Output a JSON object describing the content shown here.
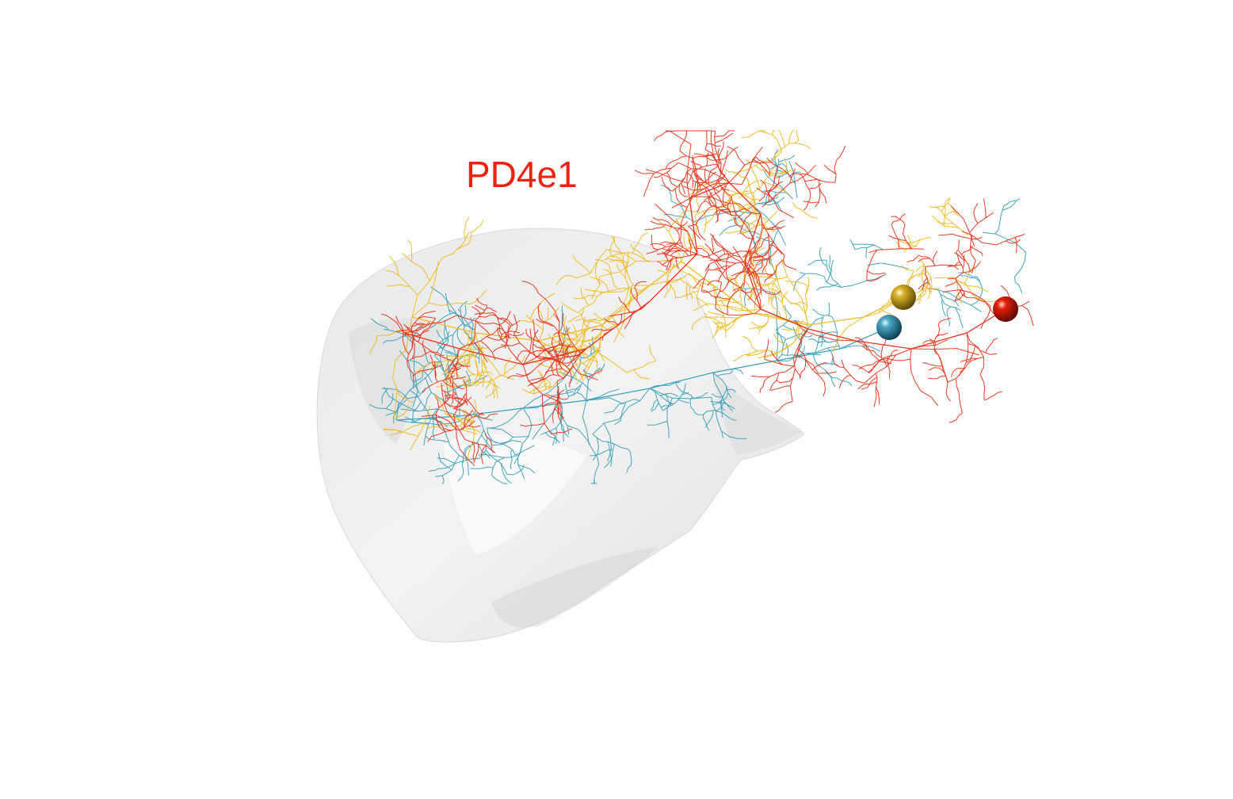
{
  "title": {
    "text": "PD4e1",
    "color": "#ee2210"
  },
  "scene": {
    "background": "#ffffff",
    "mesh_color": "#d2d2d2",
    "neurons": [
      {
        "name": "neuron-teal",
        "color": "#3aa0b8",
        "soma": "teal"
      },
      {
        "name": "neuron-yellow",
        "color": "#eebb22",
        "soma": "yellow"
      },
      {
        "name": "neuron-red",
        "color": "#e8321a",
        "soma": "red"
      }
    ]
  }
}
